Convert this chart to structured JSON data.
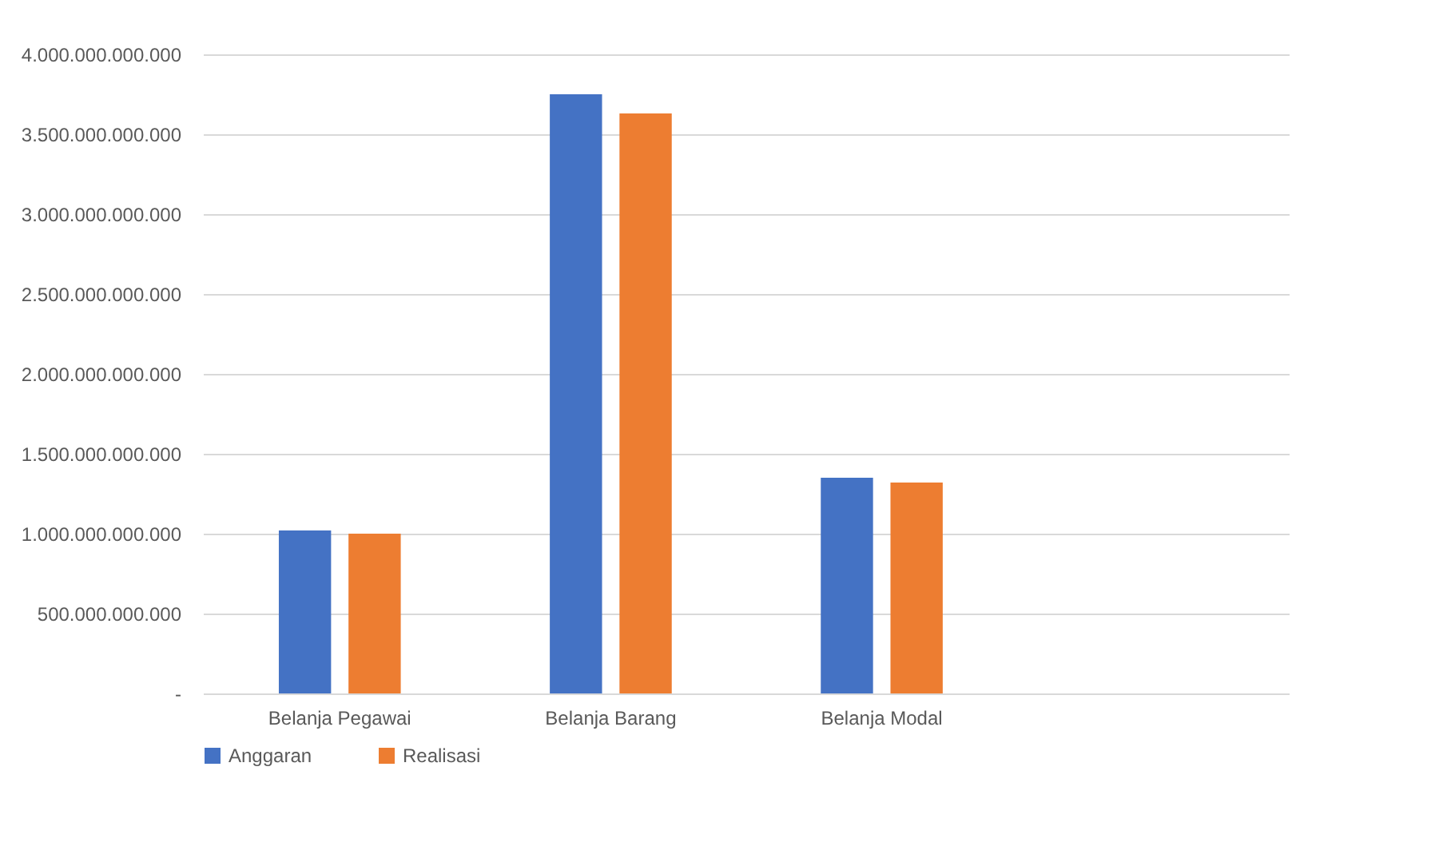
{
  "chart_data": {
    "type": "bar",
    "categories": [
      "Belanja Pegawai",
      "Belanja Barang",
      "Belanja Modal",
      null
    ],
    "series": [
      {
        "name": "Anggaran",
        "color": "#4472c4",
        "values": [
          1020000000000,
          3750000000000,
          1350000000000,
          null
        ]
      },
      {
        "name": "Realisasi",
        "color": "#ed7d31",
        "values": [
          1000000000000,
          3630000000000,
          1320000000000,
          null
        ]
      }
    ],
    "ylim": [
      0,
      4000000000000
    ],
    "yticks": [
      {
        "value": 0,
        "label": "-"
      },
      {
        "value": 500000000000,
        "label": "500.000.000.000"
      },
      {
        "value": 1000000000000,
        "label": "1.000.000.000.000"
      },
      {
        "value": 1500000000000,
        "label": "1.500.000.000.000"
      },
      {
        "value": 2000000000000,
        "label": "2.000.000.000.000"
      },
      {
        "value": 2500000000000,
        "label": "2.500.000.000.000"
      },
      {
        "value": 3000000000000,
        "label": "3.000.000.000.000"
      },
      {
        "value": 3500000000000,
        "label": "3.500.000.000.000"
      },
      {
        "value": 4000000000000,
        "label": "4.000.000.000.000"
      }
    ],
    "grid": "y",
    "legend": "bottom"
  }
}
